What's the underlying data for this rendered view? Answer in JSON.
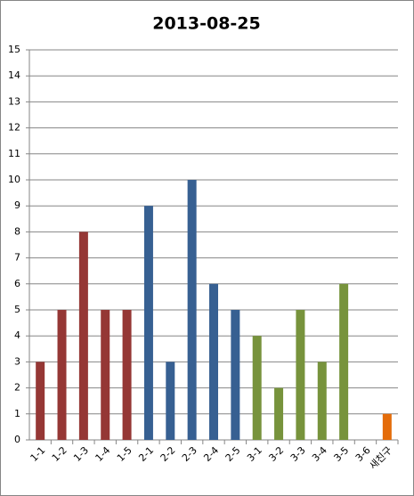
{
  "chart_data": {
    "type": "bar",
    "title": "2013-08-25",
    "categories": [
      "1-1",
      "1-2",
      "1-3",
      "1-4",
      "1-5",
      "2-1",
      "2-2",
      "2-3",
      "2-4",
      "2-5",
      "3-1",
      "3-2",
      "3-3",
      "3-4",
      "3-5",
      "3-6",
      "새친구"
    ],
    "values": [
      3,
      5,
      8,
      5,
      5,
      9,
      3,
      10,
      6,
      5,
      4,
      2,
      5,
      3,
      6,
      0,
      1
    ],
    "colors": [
      "#953735",
      "#953735",
      "#953735",
      "#953735",
      "#953735",
      "#376092",
      "#376092",
      "#376092",
      "#376092",
      "#376092",
      "#77933c",
      "#77933c",
      "#77933c",
      "#77933c",
      "#77933c",
      "#77933c",
      "#e46c0a"
    ],
    "ylim": [
      0,
      15
    ],
    "yticks": [
      0,
      1,
      2,
      3,
      4,
      5,
      6,
      7,
      8,
      9,
      10,
      11,
      12,
      13,
      14,
      15
    ],
    "grid": true
  }
}
